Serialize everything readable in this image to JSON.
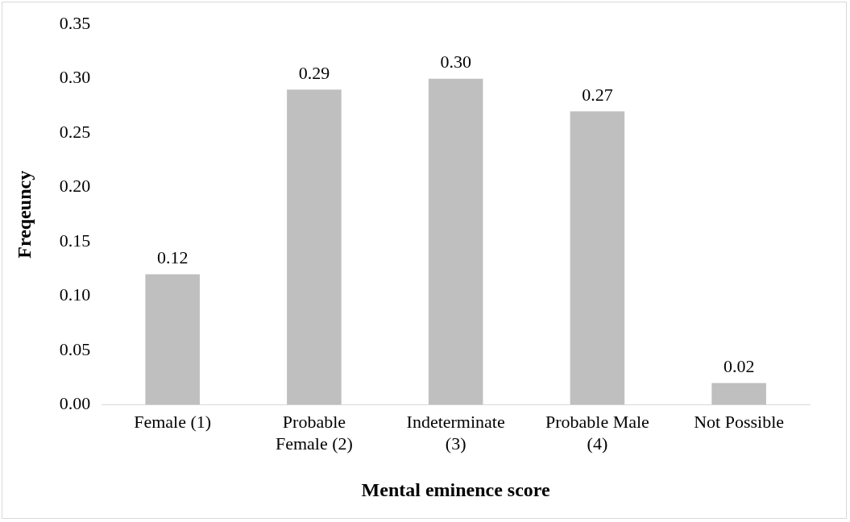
{
  "chart_data": {
    "type": "bar",
    "xlabel": "Mental eminence score",
    "ylabel": "Freqeuncy",
    "categories": [
      "Female (1)",
      "Probable Female (2)",
      "Indeterminate (3)",
      "Probable Male (4)",
      "Not Possible"
    ],
    "values": [
      0.12,
      0.29,
      0.3,
      0.27,
      0.02
    ],
    "value_labels": [
      "0.12",
      "0.29",
      "0.30",
      "0.27",
      "0.02"
    ],
    "color": "#bfbfbf",
    "ylim": [
      0,
      0.35
    ],
    "yticks": [
      {
        "value": 0,
        "label": "0.00"
      },
      {
        "value": 0.05,
        "label": "0.05"
      },
      {
        "value": 0.1,
        "label": "0.10"
      },
      {
        "value": 0.15,
        "label": "0.15"
      },
      {
        "value": 0.2,
        "label": "0.20"
      },
      {
        "value": 0.25,
        "label": "0.25"
      },
      {
        "value": 0.3,
        "label": "0.30"
      },
      {
        "value": 0.35,
        "label": "0.35"
      }
    ],
    "grid": false,
    "legend": false
  }
}
